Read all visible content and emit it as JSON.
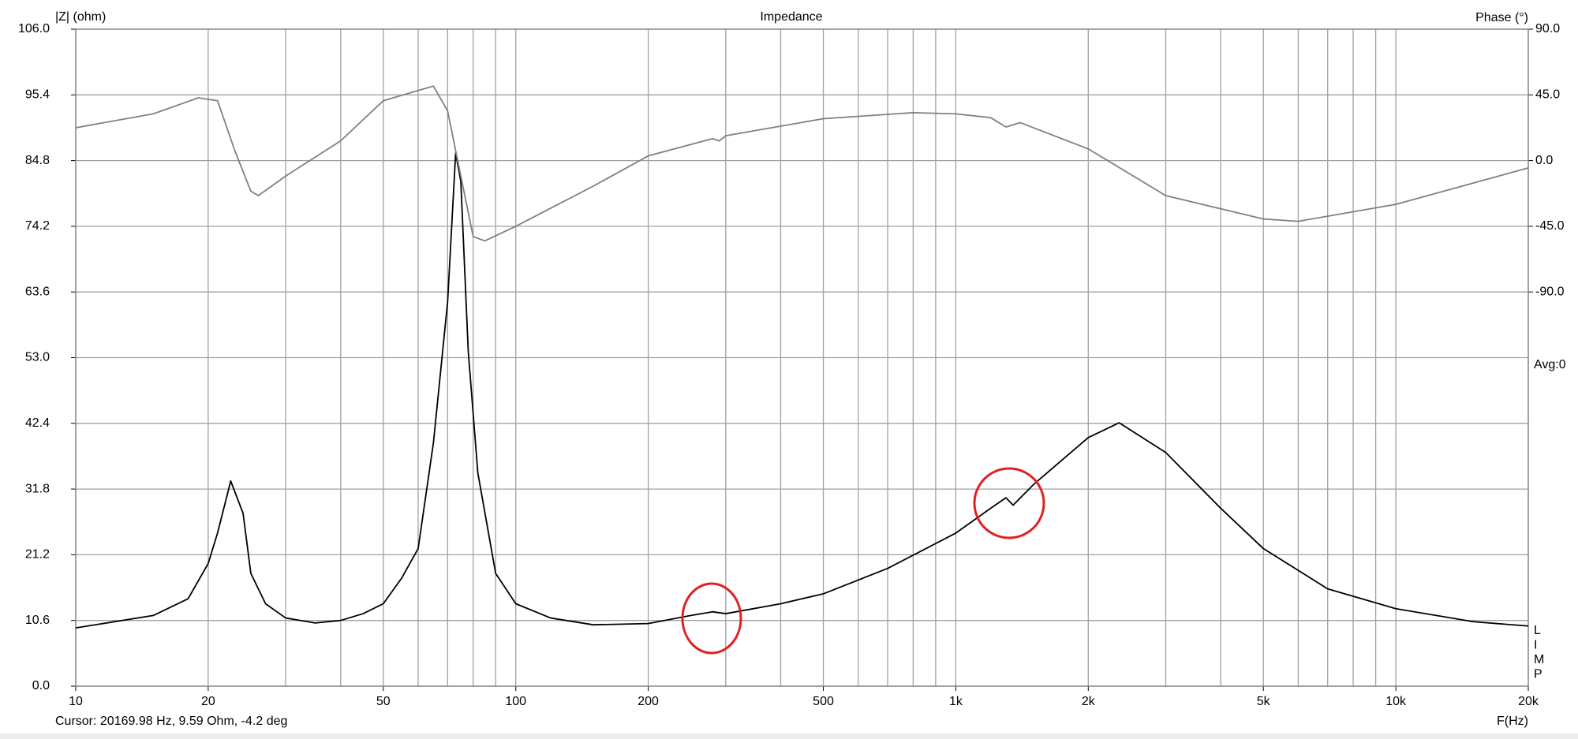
{
  "chart_data": {
    "type": "line",
    "title": "Impedance",
    "ylabel": "|Z| (ohm)",
    "y2label": "Phase (°)",
    "xlabel": "F(Hz)",
    "cursor_text": "Cursor: 20169.98 Hz, 9.59 Ohm, -4.2 deg",
    "avg_label": "Avg:0",
    "side_letters": [
      "L",
      "I",
      "M",
      "P"
    ],
    "xscale": "log",
    "grid": true,
    "xlim": [
      10,
      20000
    ],
    "xticks": [
      10,
      20,
      50,
      100,
      200,
      500,
      {
        "value": 1000,
        "label": "1k"
      },
      {
        "value": 2000,
        "label": "2k"
      },
      {
        "value": 5000,
        "label": "5k"
      },
      {
        "value": 10000,
        "label": "10k"
      },
      {
        "value": 20000,
        "label": "20k"
      }
    ],
    "xminor_ticks": [
      30,
      40,
      60,
      70,
      80,
      90,
      300,
      400,
      600,
      700,
      800,
      900,
      3000,
      4000,
      6000,
      7000,
      8000,
      9000
    ],
    "ylim": [
      0,
      106
    ],
    "yticks": [
      {
        "value": 0,
        "label": "0.0"
      },
      10.6,
      21.2,
      31.8,
      42.4,
      {
        "value": 53,
        "label": "53.0"
      },
      63.6,
      74.2,
      84.8,
      95.4,
      {
        "value": 106,
        "label": "106.0"
      }
    ],
    "y2lim": [
      -360,
      90
    ],
    "y2ticks": [
      {
        "value": 90,
        "label": "90.0"
      },
      {
        "value": 45,
        "label": "45.0"
      },
      {
        "value": 0,
        "label": "0.0"
      },
      {
        "value": -45,
        "label": "-45.0"
      },
      {
        "value": -90,
        "label": "-90.0"
      }
    ],
    "series": [
      {
        "color": "#000000",
        "x": [
          10,
          15,
          18,
          20,
          21,
          22.5,
          24,
          25,
          27,
          30,
          35,
          40,
          45,
          50,
          55,
          60,
          65,
          70,
          73,
          75,
          78,
          82,
          90,
          100,
          120,
          150,
          200,
          250,
          280,
          300,
          400,
          500,
          700,
          1000,
          1200,
          1300,
          1350,
          1500,
          2000,
          2350,
          3000,
          4000,
          5000,
          7000,
          10000,
          15000,
          20000
        ],
        "values": [
          9.4,
          11.4,
          14.1,
          19.8,
          24.7,
          33.1,
          27.9,
          18.2,
          13.3,
          11.0,
          10.2,
          10.6,
          11.7,
          13.3,
          17.4,
          22.2,
          39.3,
          62,
          86,
          81.5,
          53.9,
          34.4,
          18.2,
          13.3,
          11.0,
          9.9,
          10.1,
          11.4,
          12.0,
          11.7,
          13.3,
          14.9,
          19.0,
          24.7,
          28.7,
          30.4,
          29.2,
          32.5,
          40.1,
          42.5,
          37.7,
          28.7,
          22.2,
          15.7,
          12.5,
          10.4,
          9.7
        ]
      },
      {
        "color": "#808080",
        "axis": "y2",
        "x": [
          10,
          15,
          19,
          21,
          23,
          25,
          26,
          30,
          40,
          50,
          60,
          65,
          70,
          80,
          85,
          100,
          150,
          200,
          280,
          290,
          300,
          500,
          800,
          1000,
          1200,
          1300,
          1400,
          2000,
          3000,
          5000,
          6000,
          10000,
          20000
        ],
        "values": [
          22.5,
          32,
          43,
          41,
          6.6,
          -21,
          -24,
          -10.6,
          13.5,
          41,
          48,
          51,
          34,
          -52,
          -55,
          -45,
          -17.5,
          3.2,
          15,
          13.5,
          17,
          28.7,
          32.8,
          32,
          29.4,
          23,
          26,
          8,
          -24,
          -40,
          -41.6,
          -30,
          -5
        ]
      }
    ]
  }
}
